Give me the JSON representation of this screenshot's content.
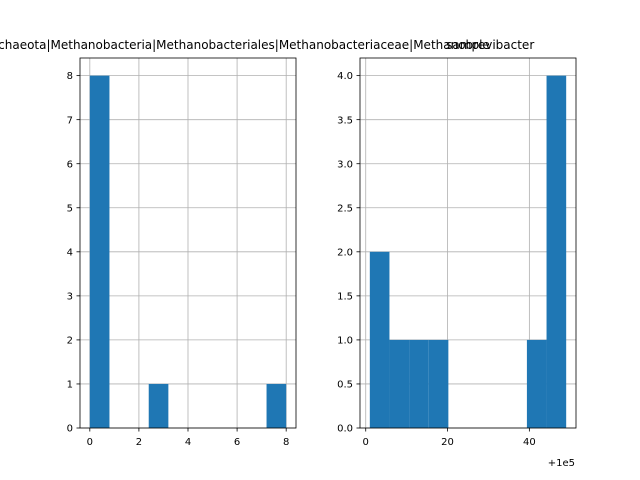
{
  "chart_data": [
    {
      "type": "bar",
      "title": "samples|Archaea|Euryarchaeota|Methanobacteria|Methanobacteriales|Methanobacteriaceae|Methanobrevibacter",
      "xlabel": "",
      "ylabel": "",
      "xlim": [
        -0.4,
        8.4
      ],
      "ylim": [
        0,
        8.4
      ],
      "grid": true,
      "bar_color": "#1f77b4",
      "bins": [
        {
          "x0": 0.0,
          "x1": 0.8,
          "count": 8
        },
        {
          "x0": 0.8,
          "x1": 1.6,
          "count": 0
        },
        {
          "x0": 1.6,
          "x1": 2.4,
          "count": 0
        },
        {
          "x0": 2.4,
          "x1": 3.2,
          "count": 1
        },
        {
          "x0": 3.2,
          "x1": 4.0,
          "count": 0
        },
        {
          "x0": 4.0,
          "x1": 4.8,
          "count": 0
        },
        {
          "x0": 4.8,
          "x1": 5.6,
          "count": 0
        },
        {
          "x0": 5.6,
          "x1": 6.4,
          "count": 0
        },
        {
          "x0": 6.4,
          "x1": 7.2,
          "count": 0
        },
        {
          "x0": 7.2,
          "x1": 8.0,
          "count": 1
        }
      ],
      "xticks": [
        {
          "value": 0,
          "label": "0"
        },
        {
          "value": 2,
          "label": "2"
        },
        {
          "value": 4,
          "label": "4"
        },
        {
          "value": 6,
          "label": "6"
        },
        {
          "value": 8,
          "label": "8"
        }
      ],
      "yticks": [
        {
          "value": 0,
          "label": "0"
        },
        {
          "value": 1,
          "label": "1"
        },
        {
          "value": 2,
          "label": "2"
        },
        {
          "value": 3,
          "label": "3"
        },
        {
          "value": 4,
          "label": "4"
        },
        {
          "value": 5,
          "label": "5"
        },
        {
          "value": 6,
          "label": "6"
        },
        {
          "value": 7,
          "label": "7"
        },
        {
          "value": 8,
          "label": "8"
        }
      ],
      "offset_label": ""
    },
    {
      "type": "bar",
      "title": "sample",
      "xlabel": "",
      "ylabel": "",
      "xlim": [
        -1.4,
        51.4
      ],
      "ylim": [
        0,
        4.2
      ],
      "grid": true,
      "bar_color": "#1f77b4",
      "bins": [
        {
          "x0": 1.0,
          "x1": 5.8,
          "count": 2
        },
        {
          "x0": 5.8,
          "x1": 10.6,
          "count": 1
        },
        {
          "x0": 10.6,
          "x1": 15.4,
          "count": 1
        },
        {
          "x0": 15.4,
          "x1": 20.2,
          "count": 1
        },
        {
          "x0": 20.2,
          "x1": 25.0,
          "count": 0
        },
        {
          "x0": 25.0,
          "x1": 29.8,
          "count": 0
        },
        {
          "x0": 29.8,
          "x1": 34.6,
          "count": 0
        },
        {
          "x0": 34.6,
          "x1": 39.4,
          "count": 0
        },
        {
          "x0": 39.4,
          "x1": 44.2,
          "count": 1
        },
        {
          "x0": 44.2,
          "x1": 49.0,
          "count": 4
        }
      ],
      "xticks": [
        {
          "value": 0,
          "label": "0"
        },
        {
          "value": 20,
          "label": "20"
        },
        {
          "value": 40,
          "label": "40"
        }
      ],
      "yticks": [
        {
          "value": 0.0,
          "label": "0.0"
        },
        {
          "value": 0.5,
          "label": "0.5"
        },
        {
          "value": 1.0,
          "label": "1.0"
        },
        {
          "value": 1.5,
          "label": "1.5"
        },
        {
          "value": 2.0,
          "label": "2.0"
        },
        {
          "value": 2.5,
          "label": "2.5"
        },
        {
          "value": 3.0,
          "label": "3.0"
        },
        {
          "value": 3.5,
          "label": "3.5"
        },
        {
          "value": 4.0,
          "label": "4.0"
        }
      ],
      "offset_label": "+1e5"
    }
  ]
}
